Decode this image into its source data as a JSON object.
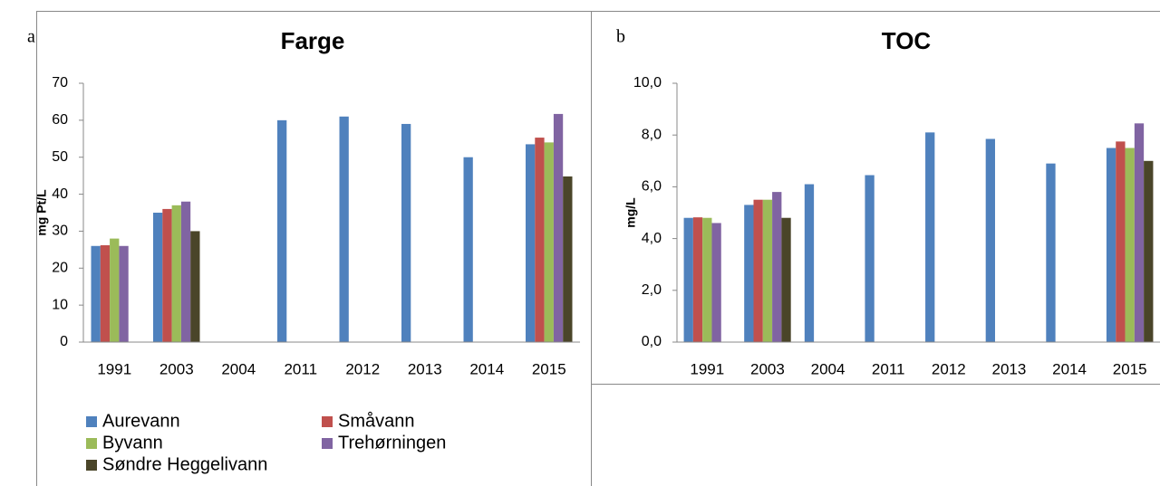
{
  "chart_data": [
    {
      "type": "bar",
      "label": "a",
      "title": "Farge",
      "y_label": "mg Pt/L",
      "categories": [
        "1991",
        "2003",
        "2004",
        "2011",
        "2012",
        "2013",
        "2014",
        "2015"
      ],
      "series": [
        {
          "name": "Aurevann",
          "color": "#4f81bd",
          "values": [
            26,
            35,
            null,
            60,
            61,
            59,
            50,
            53.5
          ]
        },
        {
          "name": "Småvann",
          "color": "#c0504d",
          "values": [
            26.2,
            36,
            null,
            null,
            null,
            null,
            null,
            55.3
          ]
        },
        {
          "name": "Byvann",
          "color": "#9bbb59",
          "values": [
            28,
            37,
            null,
            null,
            null,
            null,
            null,
            54
          ]
        },
        {
          "name": "Trehørningen",
          "color": "#8064a2",
          "values": [
            26,
            38,
            null,
            null,
            null,
            null,
            null,
            61.7
          ]
        },
        {
          "name": "Søndre Heggelivann",
          "color": "#4a4529",
          "values": [
            null,
            30,
            null,
            null,
            null,
            null,
            null,
            44.8
          ]
        }
      ],
      "ylim": [
        0,
        70
      ],
      "yticks": [
        0,
        10,
        20,
        30,
        40,
        50,
        60,
        70
      ],
      "grid": false,
      "legend": "bottom"
    },
    {
      "type": "bar",
      "label": "b",
      "title": "TOC",
      "y_label": "mg/L",
      "categories": [
        "1991",
        "2003",
        "2004",
        "2011",
        "2012",
        "2013",
        "2014",
        "2015"
      ],
      "series": [
        {
          "name": "Aurevann",
          "color": "#4f81bd",
          "values": [
            4.8,
            5.3,
            6.1,
            6.45,
            8.1,
            7.85,
            6.9,
            7.5
          ]
        },
        {
          "name": "Småvann",
          "color": "#c0504d",
          "values": [
            4.82,
            5.5,
            null,
            null,
            null,
            null,
            null,
            7.75
          ]
        },
        {
          "name": "Byvann",
          "color": "#9bbb59",
          "values": [
            4.8,
            5.5,
            null,
            null,
            null,
            null,
            null,
            7.5
          ]
        },
        {
          "name": "Trehørningen",
          "color": "#8064a2",
          "values": [
            4.6,
            5.8,
            null,
            null,
            null,
            null,
            null,
            8.45
          ]
        },
        {
          "name": "Søndre Heggelivann",
          "color": "#4a4529",
          "values": [
            null,
            4.8,
            null,
            null,
            null,
            null,
            null,
            7.0
          ]
        }
      ],
      "ylim": [
        0,
        10
      ],
      "yticks": [
        {
          "value": 0,
          "label": "0,0"
        },
        {
          "value": 2,
          "label": "2,0"
        },
        {
          "value": 4,
          "label": "4,0"
        },
        {
          "value": 6,
          "label": "6,0"
        },
        {
          "value": 8,
          "label": "8,0"
        },
        {
          "value": 10,
          "label": "10,0"
        }
      ],
      "grid": false
    }
  ]
}
